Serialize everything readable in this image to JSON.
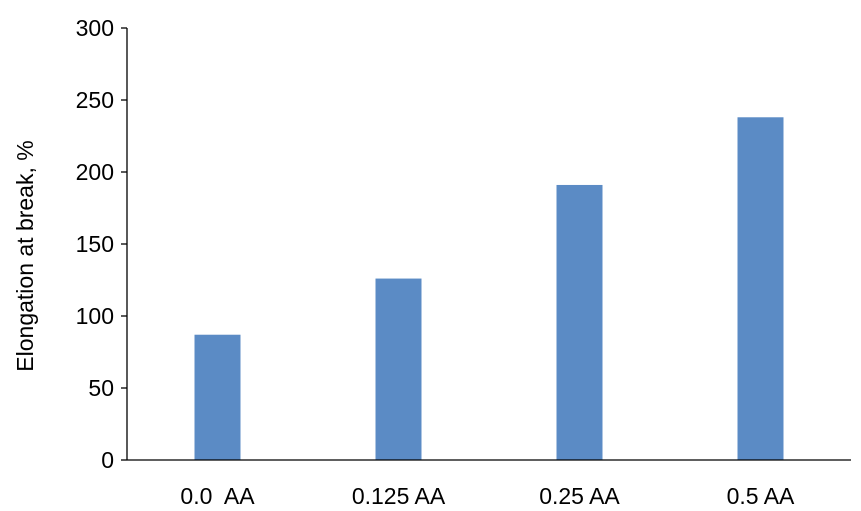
{
  "chart_data": {
    "type": "bar",
    "title": "",
    "xlabel": "",
    "ylabel": "Elongation at break, %",
    "categories": [
      "0.0  AA",
      "0.125 AA",
      "0.25 AA",
      "0.5 AA"
    ],
    "values": [
      87,
      126,
      191,
      238
    ],
    "ylim": [
      0,
      300
    ],
    "yticks": [
      0,
      50,
      100,
      150,
      200,
      250,
      300
    ],
    "ytick_labels": [
      "0",
      "50",
      "100",
      "150",
      "200",
      "250",
      "300"
    ],
    "grid": false,
    "legend": "none",
    "bar_color": "#5b8bc5"
  }
}
